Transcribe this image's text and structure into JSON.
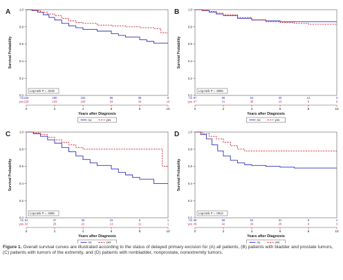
{
  "figure": {
    "caption_label": "Figure 1.",
    "caption_text": "Overall survival curves are illustrated according to the status of delayed primary excision for (A) all patients, (B) patients with bladder and prostate tumors, (C) patients with tumors of the extremity, and (D) patients with nonbladder, nonprostate, nonextremity tumors."
  },
  "colors": {
    "no": "#2e2ebd",
    "yes": "#cc2233",
    "axis": "#555555",
    "text": "#222222"
  },
  "chart_data": [
    {
      "type": "line",
      "panel": "A",
      "xlabel": "Years after Diagnosis",
      "ylabel": "Survival Probability",
      "xlim": [
        0,
        10
      ],
      "ylim": [
        0,
        1
      ],
      "xticks": [
        0,
        2,
        4,
        6,
        8,
        10
      ],
      "yticks": [
        0,
        0.2,
        0.4,
        0.6,
        0.8,
        1.0
      ],
      "logrank": "Log-rank P = .3139",
      "risk_table": {
        "rows": [
          {
            "label": "no",
            "counts": [
              "225",
              "180",
              "152",
              "85",
              "38",
              "8"
            ]
          },
          {
            "label": "yes",
            "counts": [
              "126",
              "103",
              "100",
              "64",
              "34",
              "10"
            ]
          }
        ]
      },
      "legend": [
        "no",
        "yes"
      ],
      "series": [
        {
          "name": "no",
          "style": "solid",
          "points": [
            [
              0,
              1
            ],
            [
              0.4,
              0.99
            ],
            [
              0.8,
              0.97
            ],
            [
              1.2,
              0.94
            ],
            [
              1.6,
              0.91
            ],
            [
              2,
              0.88
            ],
            [
              2.5,
              0.84
            ],
            [
              3,
              0.81
            ],
            [
              3.5,
              0.79
            ],
            [
              4,
              0.77
            ],
            [
              5,
              0.75
            ],
            [
              6,
              0.72
            ],
            [
              6.5,
              0.7
            ],
            [
              7,
              0.68
            ],
            [
              8,
              0.65
            ],
            [
              8.5,
              0.63
            ],
            [
              9,
              0.61
            ],
            [
              10,
              0.61
            ]
          ]
        },
        {
          "name": "yes",
          "style": "dashed",
          "points": [
            [
              0,
              1
            ],
            [
              0.5,
              0.99
            ],
            [
              1,
              0.97
            ],
            [
              1.5,
              0.95
            ],
            [
              2,
              0.93
            ],
            [
              2.5,
              0.9
            ],
            [
              3,
              0.87
            ],
            [
              3.5,
              0.85
            ],
            [
              4,
              0.84
            ],
            [
              5,
              0.82
            ],
            [
              6,
              0.81
            ],
            [
              7,
              0.8
            ],
            [
              8,
              0.79
            ],
            [
              9,
              0.78
            ],
            [
              9.5,
              0.73
            ],
            [
              10,
              0.73
            ]
          ]
        }
      ]
    },
    {
      "type": "line",
      "panel": "B",
      "xlabel": "Years after Diagnosis",
      "ylabel": "Survival Probability",
      "xlim": [
        0,
        10
      ],
      "ylim": [
        0,
        1
      ],
      "xticks": [
        0,
        2,
        4,
        6,
        8,
        10
      ],
      "yticks": [
        0,
        0.2,
        0.4,
        0.6,
        0.8,
        1.0
      ],
      "logrank": "Log-rank P = .6605",
      "risk_table": {
        "rows": [
          {
            "label": "no",
            "counts": [
              "87",
              "66",
              "54",
              "30",
              "12",
              "3"
            ]
          },
          {
            "label": "yes",
            "counts": [
              "47",
              "41",
              "38",
              "23",
              "9",
              "6"
            ]
          }
        ]
      },
      "legend": [
        "no",
        "yes"
      ],
      "series": [
        {
          "name": "no",
          "style": "solid",
          "points": [
            [
              0,
              1
            ],
            [
              0.5,
              0.99
            ],
            [
              1,
              0.97
            ],
            [
              1.5,
              0.95
            ],
            [
              2,
              0.93
            ],
            [
              3,
              0.9
            ],
            [
              4,
              0.88
            ],
            [
              5,
              0.87
            ],
            [
              6,
              0.86
            ],
            [
              7,
              0.86
            ],
            [
              8,
              0.86
            ],
            [
              10,
              0.86
            ]
          ]
        },
        {
          "name": "yes",
          "style": "dashed",
          "points": [
            [
              0,
              1
            ],
            [
              0.5,
              0.99
            ],
            [
              1,
              0.98
            ],
            [
              1.5,
              0.96
            ],
            [
              2,
              0.94
            ],
            [
              3,
              0.91
            ],
            [
              4,
              0.88
            ],
            [
              5,
              0.86
            ],
            [
              6,
              0.85
            ],
            [
              7,
              0.84
            ],
            [
              8,
              0.83
            ],
            [
              10,
              0.83
            ]
          ]
        }
      ]
    },
    {
      "type": "line",
      "panel": "C",
      "xlabel": "Years after Diagnosis",
      "ylabel": "Survival Probability",
      "xlim": [
        0,
        10
      ],
      "ylim": [
        0,
        1
      ],
      "xticks": [
        0,
        2,
        4,
        6,
        8,
        10
      ],
      "yticks": [
        0,
        0.2,
        0.4,
        0.6,
        0.8,
        1.0
      ],
      "logrank": "Log-rank P = .2065",
      "risk_table": {
        "rows": [
          {
            "label": "no",
            "counts": [
              "54",
              "47",
              "36",
              "15",
              "6",
              "1"
            ]
          },
          {
            "label": "yes",
            "counts": [
              "32",
              "26",
              "22",
              "13",
              "11",
              "1"
            ]
          }
        ]
      },
      "legend": [
        "no",
        "yes"
      ],
      "series": [
        {
          "name": "no",
          "style": "solid",
          "points": [
            [
              0,
              1
            ],
            [
              0.5,
              0.98
            ],
            [
              1,
              0.95
            ],
            [
              1.5,
              0.91
            ],
            [
              2,
              0.87
            ],
            [
              2.5,
              0.82
            ],
            [
              3,
              0.77
            ],
            [
              3.5,
              0.72
            ],
            [
              4,
              0.68
            ],
            [
              4.5,
              0.64
            ],
            [
              5,
              0.61
            ],
            [
              6,
              0.57
            ],
            [
              6.5,
              0.53
            ],
            [
              7,
              0.5
            ],
            [
              7.5,
              0.47
            ],
            [
              8,
              0.45
            ],
            [
              9,
              0.4
            ],
            [
              10,
              0.4
            ]
          ]
        },
        {
          "name": "yes",
          "style": "dashed",
          "points": [
            [
              0,
              1
            ],
            [
              0.5,
              0.99
            ],
            [
              1,
              0.97
            ],
            [
              1.5,
              0.94
            ],
            [
              2,
              0.91
            ],
            [
              2.5,
              0.88
            ],
            [
              3,
              0.85
            ],
            [
              3.5,
              0.82
            ],
            [
              4,
              0.8
            ],
            [
              5,
              0.8
            ],
            [
              6,
              0.8
            ],
            [
              7,
              0.8
            ],
            [
              8,
              0.8
            ],
            [
              9,
              0.8
            ],
            [
              9.6,
              0.6
            ],
            [
              10,
              0.6
            ]
          ]
        }
      ]
    },
    {
      "type": "line",
      "panel": "D",
      "xlabel": "Years after Diagnosis",
      "ylabel": "Survival Probability",
      "xlim": [
        0,
        10
      ],
      "ylim": [
        0,
        1
      ],
      "xticks": [
        0,
        2,
        4,
        6,
        8,
        10
      ],
      "yticks": [
        0,
        0.2,
        0.4,
        0.6,
        0.8,
        1.0
      ],
      "logrank": "Log-rank P = .0913",
      "risk_table": {
        "rows": [
          {
            "label": "no",
            "counts": [
              "88",
              "66",
              "52",
              "31",
              "9",
              "4"
            ]
          },
          {
            "label": "yes",
            "counts": [
              "45",
              "42",
              "34",
              "25",
              "9",
              "3"
            ]
          }
        ]
      },
      "legend": [
        "no",
        "yes"
      ],
      "series": [
        {
          "name": "no",
          "style": "solid",
          "points": [
            [
              0,
              1
            ],
            [
              0.4,
              0.97
            ],
            [
              0.8,
              0.92
            ],
            [
              1.2,
              0.85
            ],
            [
              1.6,
              0.78
            ],
            [
              2,
              0.72
            ],
            [
              2.5,
              0.67
            ],
            [
              3,
              0.64
            ],
            [
              3.5,
              0.62
            ],
            [
              4,
              0.61
            ],
            [
              5,
              0.6
            ],
            [
              6,
              0.59
            ],
            [
              7,
              0.58
            ],
            [
              8,
              0.58
            ],
            [
              10,
              0.58
            ]
          ]
        },
        {
          "name": "yes",
          "style": "dashed",
          "points": [
            [
              0,
              1
            ],
            [
              0.5,
              0.98
            ],
            [
              1,
              0.95
            ],
            [
              1.5,
              0.92
            ],
            [
              2,
              0.88
            ],
            [
              2.5,
              0.84
            ],
            [
              3,
              0.8
            ],
            [
              3.5,
              0.78
            ],
            [
              4,
              0.78
            ],
            [
              6,
              0.78
            ],
            [
              8,
              0.78
            ],
            [
              10,
              0.78
            ]
          ]
        }
      ]
    }
  ]
}
